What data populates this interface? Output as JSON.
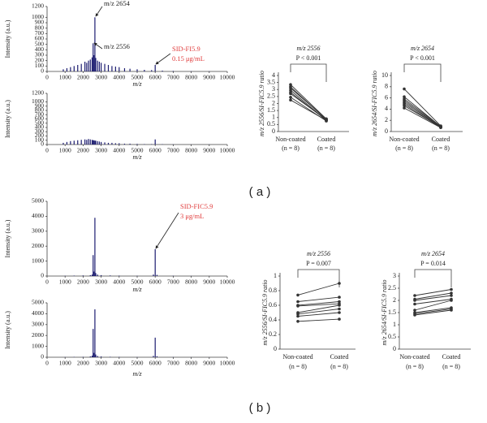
{
  "panel_labels": [
    "( a )",
    "( b )"
  ],
  "chart_data": [
    {
      "type": "spectrum",
      "xlabel": "m/z",
      "ylabel": "Intensity (a.u.)",
      "color": "#1c1c70",
      "xlim": [
        0,
        10000
      ],
      "xticks": [
        0,
        1000,
        2000,
        3000,
        4000,
        5000,
        6000,
        7000,
        8000,
        9000,
        10000
      ],
      "ylim": [
        0,
        1200
      ],
      "yticks": [
        0,
        100,
        200,
        300,
        400,
        500,
        600,
        700,
        800,
        900,
        1000,
        1200
      ],
      "x": [
        900,
        1100,
        1300,
        1500,
        1700,
        1900,
        2100,
        2200,
        2300,
        2400,
        2500,
        2556,
        2600,
        2654,
        2700,
        2800,
        2900,
        3000,
        3200,
        3400,
        3600,
        3800,
        4000,
        4300,
        4600,
        5000,
        5400,
        5800,
        6000,
        6400,
        7000,
        8000,
        9000
      ],
      "values": [
        40,
        60,
        80,
        100,
        120,
        140,
        180,
        160,
        200,
        220,
        260,
        520,
        300,
        1000,
        250,
        200,
        180,
        160,
        140,
        120,
        100,
        90,
        80,
        60,
        50,
        40,
        30,
        25,
        120,
        15,
        10,
        5,
        5
      ],
      "annotations": [
        {
          "text": "m/z 2654",
          "color": "#222222"
        },
        {
          "text": "m/z 2556",
          "color": "#222222"
        },
        {
          "text": "SID-FI5.9",
          "color": "#e03c3c"
        },
        {
          "text": "0.15 μg/mL",
          "color": "#e03c3c"
        }
      ]
    },
    {
      "type": "spectrum",
      "xlabel": "m/z",
      "ylabel": "Intensity (a.u.)",
      "color": "#1c1c70",
      "xlim": [
        0,
        10000
      ],
      "xticks": [
        0,
        1000,
        2000,
        3000,
        4000,
        5000,
        6000,
        7000,
        8000,
        9000,
        10000
      ],
      "ylim": [
        0,
        1200
      ],
      "yticks": [
        0,
        100,
        200,
        300,
        400,
        500,
        600,
        700,
        800,
        900,
        1000,
        1200
      ],
      "x": [
        900,
        1100,
        1300,
        1500,
        1700,
        1900,
        2100,
        2200,
        2300,
        2400,
        2500,
        2556,
        2600,
        2654,
        2700,
        2800,
        2900,
        3000,
        3200,
        3400,
        3600,
        3800,
        4000,
        4300,
        4600,
        5000,
        5400,
        5800,
        6000,
        6400,
        7000,
        8000,
        9000
      ],
      "values": [
        40,
        60,
        80,
        90,
        100,
        110,
        120,
        110,
        130,
        120,
        110,
        100,
        100,
        90,
        90,
        80,
        70,
        60,
        50,
        40,
        40,
        30,
        30,
        20,
        20,
        15,
        10,
        10,
        120,
        8,
        5,
        3,
        3
      ]
    },
    {
      "type": "slope",
      "title": "m/z 2556",
      "annotation": "P < 0.001",
      "ylabel": "m/z 2556/SI-FIC5.9 ratio",
      "color": "#333333",
      "categories": [
        "Non-coated",
        "Coated"
      ],
      "category_sublabels": [
        "(n = 8)",
        "(n = 8)"
      ],
      "ylim": [
        0,
        4
      ],
      "yticks": [
        0,
        0.5,
        1,
        1.5,
        2,
        2.5,
        3,
        3.5,
        4
      ],
      "series": [
        {
          "values": [
            3.35,
            0.9
          ]
        },
        {
          "values": [
            3.2,
            0.85
          ]
        },
        {
          "values": [
            3.1,
            0.9
          ]
        },
        {
          "values": [
            2.95,
            0.8
          ]
        },
        {
          "values": [
            2.8,
            0.8
          ]
        },
        {
          "values": [
            2.7,
            0.85
          ]
        },
        {
          "values": [
            2.45,
            0.75
          ]
        },
        {
          "values": [
            2.25,
            0.8
          ]
        }
      ]
    },
    {
      "type": "slope",
      "title": "m/z 2654",
      "annotation": "P < 0.001",
      "ylabel": "m/z 2654/SI-FIC5.9 ratio",
      "color": "#333333",
      "categories": [
        "Non-coated",
        "Coated"
      ],
      "category_sublabels": [
        "(n = 8)",
        "(n = 8)"
      ],
      "ylim": [
        0,
        10
      ],
      "yticks": [
        0,
        2,
        4,
        6,
        8,
        10
      ],
      "series": [
        {
          "values": [
            7.6,
            1.0
          ]
        },
        {
          "values": [
            6.2,
            0.9
          ]
        },
        {
          "values": [
            5.8,
            0.9
          ]
        },
        {
          "values": [
            5.5,
            0.8
          ]
        },
        {
          "values": [
            5.2,
            0.8
          ]
        },
        {
          "values": [
            4.9,
            0.7
          ]
        },
        {
          "values": [
            4.6,
            0.8
          ]
        },
        {
          "values": [
            4.2,
            0.7
          ]
        }
      ]
    },
    {
      "type": "spectrum",
      "xlabel": "m/z",
      "ylabel": "Intensity (a.u.)",
      "color": "#1c1c70",
      "xlim": [
        0,
        10000
      ],
      "xticks": [
        0,
        1000,
        2000,
        3000,
        4000,
        5000,
        6000,
        7000,
        8000,
        9000,
        10000
      ],
      "ylim": [
        0,
        5000
      ],
      "yticks": [
        0,
        1000,
        2000,
        3000,
        4000,
        5000
      ],
      "x": [
        1000,
        1500,
        2000,
        2400,
        2500,
        2556,
        2600,
        2654,
        2700,
        2800,
        3000,
        3500,
        4000,
        5000,
        5900,
        6000,
        6100,
        7000,
        8000,
        9000
      ],
      "values": [
        20,
        30,
        40,
        60,
        100,
        1400,
        300,
        3900,
        200,
        100,
        60,
        40,
        30,
        20,
        100,
        1800,
        80,
        20,
        10,
        5
      ],
      "annotations": [
        {
          "text": "SID-FIC5.9",
          "color": "#e03c3c"
        },
        {
          "text": "3 μg/mL",
          "color": "#e03c3c"
        }
      ]
    },
    {
      "type": "spectrum",
      "xlabel": "m/z",
      "ylabel": "Intensity (a.u.)",
      "color": "#1c1c70",
      "xlim": [
        0,
        10000
      ],
      "xticks": [
        0,
        1000,
        2000,
        3000,
        4000,
        5000,
        6000,
        7000,
        8000,
        9000,
        10000
      ],
      "ylim": [
        0,
        5000
      ],
      "yticks": [
        0,
        1000,
        2000,
        3000,
        4000,
        5000
      ],
      "x": [
        1000,
        1500,
        2000,
        2400,
        2500,
        2556,
        2600,
        2654,
        2700,
        2800,
        3000,
        3500,
        4000,
        5000,
        5900,
        6000,
        6100,
        7000,
        8000,
        9000
      ],
      "values": [
        20,
        30,
        40,
        80,
        150,
        2600,
        400,
        4400,
        250,
        120,
        70,
        40,
        30,
        20,
        120,
        1800,
        90,
        20,
        10,
        5
      ]
    },
    {
      "type": "slope",
      "title": "m/z 2556",
      "annotation": "P = 0.007",
      "ylabel": "m/z 2556/SI-FIC5.9 ratio",
      "color": "#333333",
      "categories": [
        "Non-coated",
        "Coated"
      ],
      "category_sublabels": [
        "(n = 8)",
        "(n = 8)"
      ],
      "ylim": [
        0,
        1
      ],
      "yticks": [
        0,
        0.2,
        0.4,
        0.6,
        0.8,
        1
      ],
      "series": [
        {
          "values": [
            0.74,
            0.9
          ]
        },
        {
          "values": [
            0.65,
            0.71
          ]
        },
        {
          "values": [
            0.6,
            0.65
          ]
        },
        {
          "values": [
            0.59,
            0.62
          ]
        },
        {
          "values": [
            0.5,
            0.6
          ]
        },
        {
          "values": [
            0.48,
            0.55
          ]
        },
        {
          "values": [
            0.45,
            0.5
          ]
        },
        {
          "values": [
            0.38,
            0.41
          ]
        }
      ]
    },
    {
      "type": "slope",
      "title": "m/z 2654",
      "annotation": "P = 0.014",
      "ylabel": "m/z 2654/SI-FIC5.9 ratio",
      "color": "#333333",
      "categories": [
        "Non-coated",
        "Coated"
      ],
      "category_sublabels": [
        "(n = 8)",
        "(n = 8)"
      ],
      "ylim": [
        0,
        3
      ],
      "yticks": [
        0,
        0.5,
        1,
        1.5,
        2,
        2.5,
        3
      ],
      "series": [
        {
          "values": [
            2.2,
            2.45
          ]
        },
        {
          "values": [
            2.05,
            2.3
          ]
        },
        {
          "values": [
            2.0,
            2.2
          ]
        },
        {
          "values": [
            1.85,
            2.05
          ]
        },
        {
          "values": [
            1.6,
            2.0
          ]
        },
        {
          "values": [
            1.5,
            1.7
          ]
        },
        {
          "values": [
            1.45,
            1.65
          ]
        },
        {
          "values": [
            1.4,
            1.6
          ]
        }
      ]
    }
  ]
}
